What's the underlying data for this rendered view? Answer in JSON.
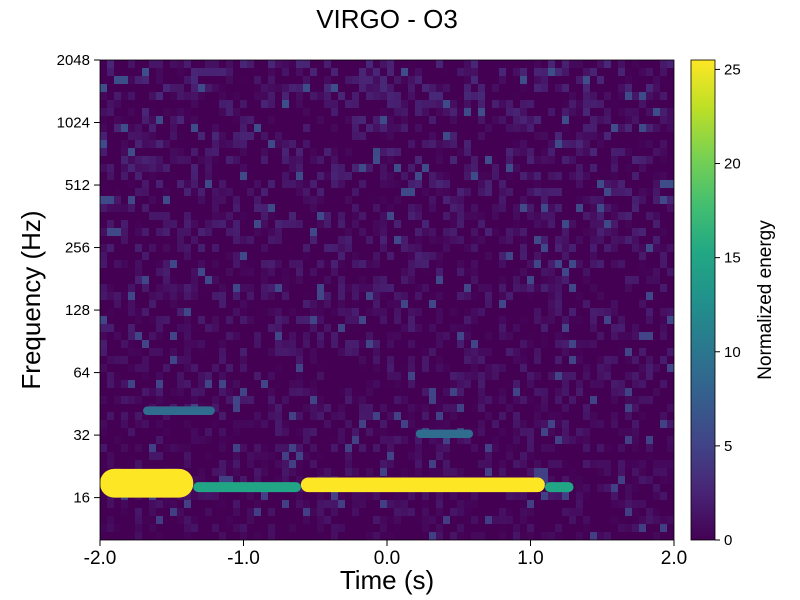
{
  "chart_data": {
    "type": "heatmap",
    "title": "VIRGO - O3",
    "xlabel": "Time (s)",
    "ylabel": "Frequency (Hz)",
    "xlim": [
      -2.0,
      2.0
    ],
    "ylim": [
      10,
      2048
    ],
    "yscale": "log2",
    "xticks": [
      "-2.0",
      "-1.0",
      "0.0",
      "1.0",
      "2.0"
    ],
    "xtick_values": [
      -2.0,
      -1.0,
      0.0,
      1.0,
      2.0
    ],
    "yticks": [
      "16",
      "32",
      "64",
      "128",
      "256",
      "512",
      "1024",
      "2048"
    ],
    "ytick_values": [
      16,
      32,
      64,
      128,
      256,
      512,
      1024,
      2048
    ],
    "colorbar": {
      "label": "Normalized energy",
      "range": [
        0,
        25.5
      ],
      "ticks": [
        "0",
        "5",
        "10",
        "15",
        "20",
        "25"
      ],
      "tick_values": [
        0,
        5,
        10,
        15,
        20,
        25
      ],
      "colormap": "viridis"
    },
    "features": [
      {
        "time": [
          -2.0,
          -1.35
        ],
        "frequency": [
          16,
          22
        ],
        "energy": 25.5
      },
      {
        "time": [
          -1.35,
          -0.6
        ],
        "frequency": [
          17,
          19
        ],
        "energy": 15
      },
      {
        "time": [
          -0.6,
          1.1
        ],
        "frequency": [
          17,
          20
        ],
        "energy": 25.5
      },
      {
        "time": [
          1.1,
          1.3
        ],
        "frequency": [
          17,
          19
        ],
        "energy": 15
      },
      {
        "time": [
          -1.7,
          -1.2
        ],
        "frequency": [
          40,
          44
        ],
        "energy": 9
      },
      {
        "time": [
          0.2,
          0.6
        ],
        "frequency": [
          31,
          34
        ],
        "energy": 9
      }
    ],
    "grid": false
  }
}
